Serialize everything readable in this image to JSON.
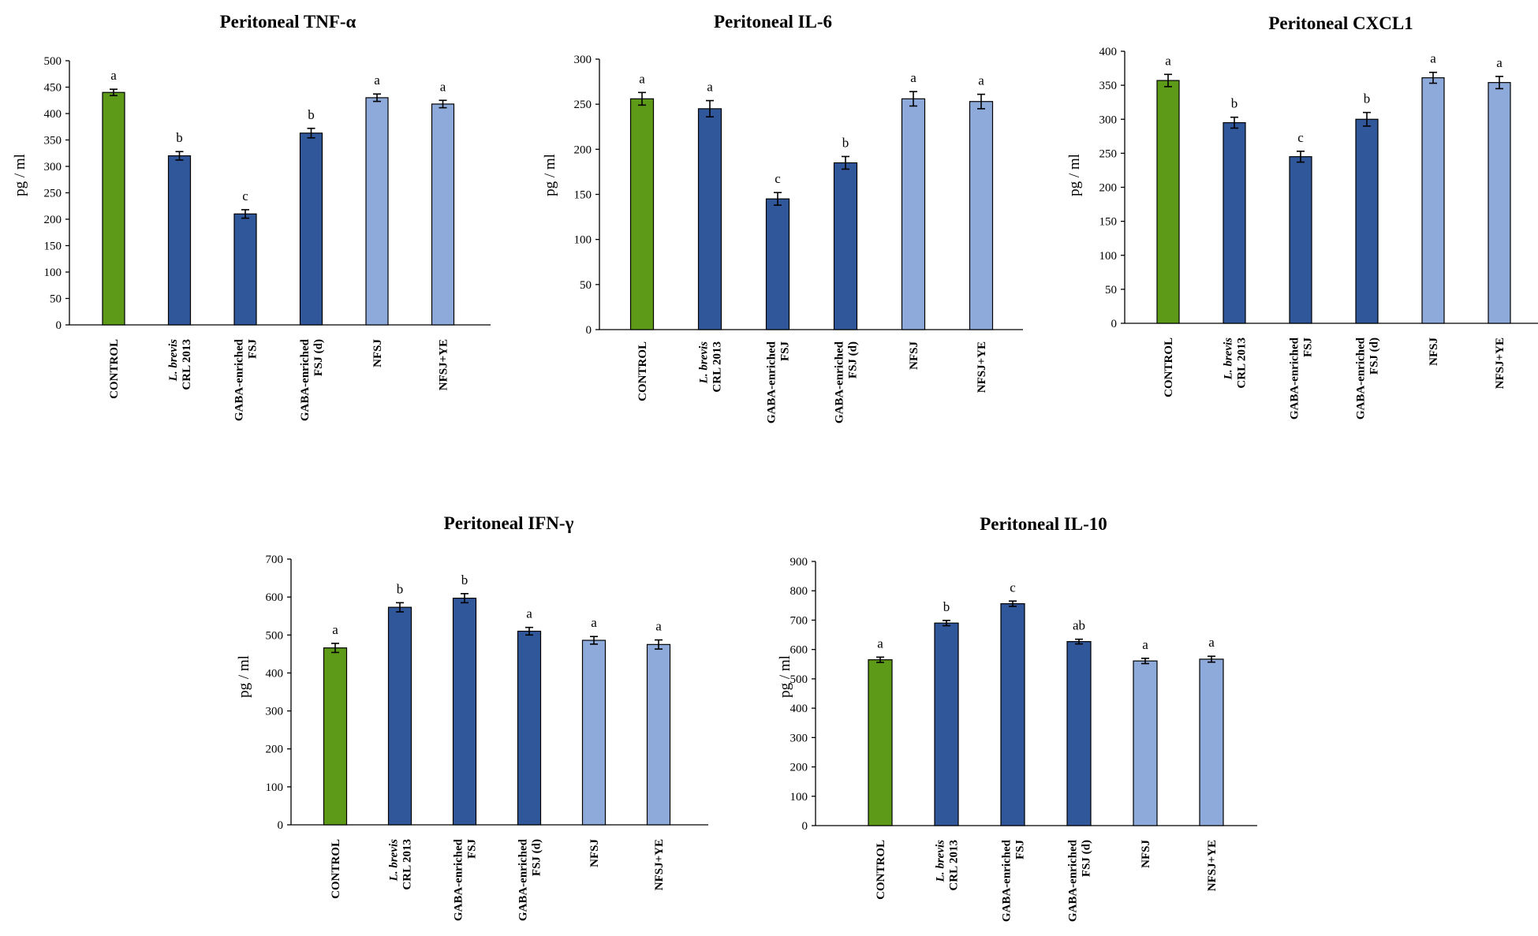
{
  "colors": {
    "control": "#5d9a17",
    "treated": "#2f579a",
    "light": "#8eaadb",
    "axis": "#000000"
  },
  "chart_data": [
    {
      "type": "bar",
      "title": "Peritoneal TNF-α",
      "ylabel": "pg / ml",
      "ylim": [
        0,
        500
      ],
      "yticks": [
        0,
        50,
        100,
        150,
        200,
        250,
        300,
        350,
        400,
        450,
        500
      ],
      "categories": [
        {
          "lines": [
            "CONTROL"
          ],
          "italic_first": false
        },
        {
          "lines": [
            "L. brevis",
            "CRL 2013"
          ],
          "italic_first": true
        },
        {
          "lines": [
            "GABA-enriched",
            "FSJ"
          ],
          "italic_first": false
        },
        {
          "lines": [
            "GABA-enriched",
            "FSJ (d)"
          ],
          "italic_first": false
        },
        {
          "lines": [
            "NFSJ"
          ],
          "italic_first": false
        },
        {
          "lines": [
            "NFSJ+YE"
          ],
          "italic_first": false
        }
      ],
      "values": [
        440,
        320,
        210,
        363,
        430,
        418
      ],
      "errors": [
        6,
        8,
        8,
        9,
        7,
        7
      ],
      "significance": [
        "a",
        "b",
        "c",
        "b",
        "a",
        "a"
      ],
      "color_groups": [
        "control",
        "treated",
        "treated",
        "treated",
        "light",
        "light"
      ]
    },
    {
      "type": "bar",
      "title": "Peritoneal IL-6",
      "ylabel": "pg / ml",
      "ylim": [
        0,
        300
      ],
      "yticks": [
        0,
        50,
        100,
        150,
        200,
        250,
        300
      ],
      "categories": [
        {
          "lines": [
            "CONTROL"
          ],
          "italic_first": false
        },
        {
          "lines": [
            "L. brevis",
            "CRL 2013"
          ],
          "italic_first": true
        },
        {
          "lines": [
            "GABA-enriched",
            "FSJ"
          ],
          "italic_first": false
        },
        {
          "lines": [
            "GABA-enriched",
            "FSJ (d)"
          ],
          "italic_first": false
        },
        {
          "lines": [
            "NFSJ"
          ],
          "italic_first": false
        },
        {
          "lines": [
            "NFSJ+YE"
          ],
          "italic_first": false
        }
      ],
      "values": [
        256,
        245,
        145,
        185,
        256,
        253
      ],
      "errors": [
        7,
        9,
        7,
        7,
        8,
        8
      ],
      "significance": [
        "a",
        "a",
        "c",
        "b",
        "a",
        "a"
      ],
      "color_groups": [
        "control",
        "treated",
        "treated",
        "treated",
        "light",
        "light"
      ]
    },
    {
      "type": "bar",
      "title": "Peritoneal CXCL1",
      "ylabel": "pg / ml",
      "ylim": [
        0,
        400
      ],
      "yticks": [
        0,
        50,
        100,
        150,
        200,
        250,
        300,
        350,
        400
      ],
      "categories": [
        {
          "lines": [
            "CONTROL"
          ],
          "italic_first": false
        },
        {
          "lines": [
            "L. brevis",
            "CRL 2013"
          ],
          "italic_first": true
        },
        {
          "lines": [
            "GABA-enriched",
            "FSJ"
          ],
          "italic_first": false
        },
        {
          "lines": [
            "GABA-enriched",
            "FSJ (d)"
          ],
          "italic_first": false
        },
        {
          "lines": [
            "NFSJ"
          ],
          "italic_first": false
        },
        {
          "lines": [
            "NFSJ+YE"
          ],
          "italic_first": false
        }
      ],
      "values": [
        357,
        295,
        245,
        300,
        361,
        354
      ],
      "errors": [
        9,
        8,
        8,
        10,
        8,
        9
      ],
      "significance": [
        "a",
        "b",
        "c",
        "b",
        "a",
        "a"
      ],
      "color_groups": [
        "control",
        "treated",
        "treated",
        "treated",
        "light",
        "light"
      ]
    },
    {
      "type": "bar",
      "title": "Peritoneal IFN-γ",
      "ylabel": "pg / ml",
      "ylim": [
        0,
        700
      ],
      "yticks": [
        0,
        100,
        200,
        300,
        400,
        500,
        600,
        700
      ],
      "categories": [
        {
          "lines": [
            "CONTROL"
          ],
          "italic_first": false
        },
        {
          "lines": [
            "L. brevis",
            "CRL 2013"
          ],
          "italic_first": true
        },
        {
          "lines": [
            "GABA-enriched",
            "FSJ"
          ],
          "italic_first": false
        },
        {
          "lines": [
            "GABA-enriched",
            "FSJ (d)"
          ],
          "italic_first": false
        },
        {
          "lines": [
            "NFSJ"
          ],
          "italic_first": false
        },
        {
          "lines": [
            "NFSJ+YE"
          ],
          "italic_first": false
        }
      ],
      "values": [
        466,
        573,
        597,
        510,
        486,
        475
      ],
      "errors": [
        12,
        12,
        12,
        10,
        10,
        12
      ],
      "significance": [
        "a",
        "b",
        "b",
        "a",
        "a",
        "a"
      ],
      "color_groups": [
        "control",
        "treated",
        "treated",
        "treated",
        "light",
        "light"
      ]
    },
    {
      "type": "bar",
      "title": "Peritoneal IL-10",
      "ylabel": "pg / ml",
      "ylim": [
        0,
        900
      ],
      "yticks": [
        0,
        100,
        200,
        300,
        400,
        500,
        600,
        700,
        800,
        900
      ],
      "categories": [
        {
          "lines": [
            "CONTROL"
          ],
          "italic_first": false
        },
        {
          "lines": [
            "L. brevis",
            "CRL 2013"
          ],
          "italic_first": true
        },
        {
          "lines": [
            "GABA-enriched",
            "FSJ"
          ],
          "italic_first": false
        },
        {
          "lines": [
            "GABA-enriched",
            "FSJ (d)"
          ],
          "italic_first": false
        },
        {
          "lines": [
            "NFSJ"
          ],
          "italic_first": false
        },
        {
          "lines": [
            "NFSJ+YE"
          ],
          "italic_first": false
        }
      ],
      "values": [
        565,
        690,
        756,
        627,
        561,
        567
      ],
      "errors": [
        9,
        9,
        9,
        8,
        9,
        10
      ],
      "significance": [
        "a",
        "b",
        "c",
        "ab",
        "a",
        "a"
      ],
      "color_groups": [
        "control",
        "treated",
        "treated",
        "treated",
        "light",
        "light"
      ]
    }
  ]
}
